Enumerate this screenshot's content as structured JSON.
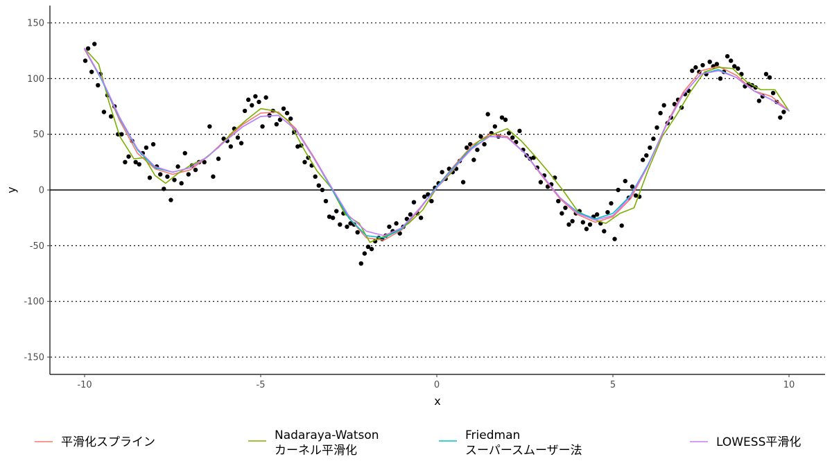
{
  "chart_data": {
    "type": "scatter",
    "title": "",
    "xlabel": "x",
    "ylabel": "y",
    "xlim": [
      -11,
      11
    ],
    "ylim": [
      -165,
      165
    ],
    "xticks": [
      -10,
      -5,
      0,
      5,
      10
    ],
    "yticks": [
      -150,
      -100,
      -50,
      0,
      50,
      100,
      150
    ],
    "tick_labels_x": [
      "-10",
      "-5",
      "0",
      "5",
      "10"
    ],
    "tick_labels_y": [
      "-150",
      "-100",
      "-50",
      "0",
      "50",
      "100",
      "150"
    ],
    "grid": "horizontal dotted at y ticks",
    "legend_position": "bottom",
    "points": [
      [
        -9.98,
        116
      ],
      [
        -9.9,
        127
      ],
      [
        -9.8,
        106
      ],
      [
        -9.72,
        131
      ],
      [
        -9.62,
        94
      ],
      [
        -9.55,
        104
      ],
      [
        -9.45,
        70
      ],
      [
        -9.35,
        85
      ],
      [
        -9.25,
        66
      ],
      [
        -9.15,
        75
      ],
      [
        -9.05,
        50
      ],
      [
        -8.95,
        50
      ],
      [
        -8.85,
        25
      ],
      [
        -8.75,
        30
      ],
      [
        -8.65,
        44
      ],
      [
        -8.55,
        25
      ],
      [
        -8.45,
        23
      ],
      [
        -8.35,
        33
      ],
      [
        -8.25,
        38
      ],
      [
        -8.15,
        11
      ],
      [
        -8.05,
        41
      ],
      [
        -7.95,
        21
      ],
      [
        -7.85,
        14
      ],
      [
        -7.75,
        1
      ],
      [
        -7.65,
        12
      ],
      [
        -7.55,
        -9
      ],
      [
        -7.45,
        9
      ],
      [
        -7.35,
        21
      ],
      [
        -7.25,
        6
      ],
      [
        -7.15,
        33
      ],
      [
        -7.05,
        14
      ],
      [
        -6.95,
        22
      ],
      [
        -6.85,
        18
      ],
      [
        -6.75,
        25
      ],
      [
        -6.6,
        25
      ],
      [
        -6.45,
        57
      ],
      [
        -6.35,
        12
      ],
      [
        -6.2,
        28
      ],
      [
        -6.05,
        46
      ],
      [
        -5.95,
        44
      ],
      [
        -5.85,
        39
      ],
      [
        -5.75,
        55
      ],
      [
        -5.65,
        47
      ],
      [
        -5.55,
        42
      ],
      [
        -5.45,
        71
      ],
      [
        -5.35,
        81
      ],
      [
        -5.25,
        76
      ],
      [
        -5.15,
        84
      ],
      [
        -5.05,
        79
      ],
      [
        -4.95,
        57
      ],
      [
        -4.85,
        83
      ],
      [
        -4.75,
        67
      ],
      [
        -4.65,
        71
      ],
      [
        -4.55,
        59
      ],
      [
        -4.45,
        63
      ],
      [
        -4.35,
        73
      ],
      [
        -4.25,
        69
      ],
      [
        -4.15,
        64
      ],
      [
        -4.05,
        52
      ],
      [
        -3.95,
        39
      ],
      [
        -3.85,
        40
      ],
      [
        -3.75,
        25
      ],
      [
        -3.65,
        29
      ],
      [
        -3.55,
        22
      ],
      [
        -3.45,
        12
      ],
      [
        -3.35,
        4
      ],
      [
        -3.25,
        0
      ],
      [
        -3.15,
        -10
      ],
      [
        -3.05,
        -24
      ],
      [
        -2.95,
        -25
      ],
      [
        -2.85,
        -19
      ],
      [
        -2.75,
        -31
      ],
      [
        -2.65,
        -21
      ],
      [
        -2.55,
        -33
      ],
      [
        -2.45,
        -30
      ],
      [
        -2.35,
        -31
      ],
      [
        -2.25,
        -38
      ],
      [
        -2.15,
        -66
      ],
      [
        -2.05,
        -57
      ],
      [
        -1.95,
        -51
      ],
      [
        -1.85,
        -53
      ],
      [
        -1.75,
        -46
      ],
      [
        -1.65,
        -43
      ],
      [
        -1.55,
        -44
      ],
      [
        -1.45,
        -41
      ],
      [
        -1.35,
        -33
      ],
      [
        -1.25,
        -37
      ],
      [
        -1.15,
        -30
      ],
      [
        -1.05,
        -39
      ],
      [
        -0.95,
        -33
      ],
      [
        -0.85,
        -26
      ],
      [
        -0.75,
        -22
      ],
      [
        -0.65,
        -11
      ],
      [
        -0.55,
        -21
      ],
      [
        -0.45,
        -25
      ],
      [
        -0.35,
        -6
      ],
      [
        -0.25,
        -4
      ],
      [
        -0.15,
        -10
      ],
      [
        -0.05,
        2
      ],
      [
        0.05,
        6
      ],
      [
        0.15,
        16
      ],
      [
        0.25,
        10
      ],
      [
        0.35,
        19
      ],
      [
        0.45,
        16
      ],
      [
        0.55,
        19
      ],
      [
        0.65,
        26
      ],
      [
        0.75,
        7
      ],
      [
        0.85,
        38
      ],
      [
        0.95,
        41
      ],
      [
        1.05,
        27
      ],
      [
        1.15,
        36
      ],
      [
        1.25,
        48
      ],
      [
        1.35,
        41
      ],
      [
        1.45,
        68
      ],
      [
        1.55,
        51
      ],
      [
        1.65,
        57
      ],
      [
        1.75,
        48
      ],
      [
        1.85,
        65
      ],
      [
        1.95,
        63
      ],
      [
        2.05,
        51
      ],
      [
        2.15,
        47
      ],
      [
        2.25,
        43
      ],
      [
        2.35,
        53
      ],
      [
        2.45,
        36
      ],
      [
        2.55,
        31
      ],
      [
        2.65,
        28
      ],
      [
        2.75,
        29
      ],
      [
        2.85,
        20
      ],
      [
        2.95,
        7
      ],
      [
        3.05,
        13
      ],
      [
        3.15,
        3
      ],
      [
        3.25,
        5
      ],
      [
        3.35,
        11
      ],
      [
        3.45,
        -10
      ],
      [
        3.55,
        -21
      ],
      [
        3.65,
        -16
      ],
      [
        3.75,
        -31
      ],
      [
        3.85,
        -28
      ],
      [
        3.95,
        -21
      ],
      [
        4.05,
        -19
      ],
      [
        4.15,
        -29
      ],
      [
        4.25,
        -35
      ],
      [
        4.35,
        -31
      ],
      [
        4.45,
        -24
      ],
      [
        4.55,
        -22
      ],
      [
        4.65,
        -30
      ],
      [
        4.75,
        -37
      ],
      [
        4.85,
        -20
      ],
      [
        4.95,
        -12
      ],
      [
        5.05,
        -44
      ],
      [
        5.15,
        0
      ],
      [
        5.25,
        -32
      ],
      [
        5.35,
        8
      ],
      [
        5.45,
        -7
      ],
      [
        5.55,
        3
      ],
      [
        5.65,
        -5
      ],
      [
        5.75,
        -6
      ],
      [
        5.85,
        27
      ],
      [
        5.95,
        31
      ],
      [
        6.05,
        38
      ],
      [
        6.15,
        46
      ],
      [
        6.25,
        56
      ],
      [
        6.35,
        69
      ],
      [
        6.45,
        76
      ],
      [
        6.55,
        60
      ],
      [
        6.65,
        65
      ],
      [
        6.75,
        77
      ],
      [
        6.85,
        81
      ],
      [
        6.95,
        74
      ],
      [
        7.05,
        86
      ],
      [
        7.15,
        89
      ],
      [
        7.25,
        107
      ],
      [
        7.35,
        110
      ],
      [
        7.45,
        106
      ],
      [
        7.55,
        112
      ],
      [
        7.65,
        104
      ],
      [
        7.75,
        115
      ],
      [
        7.85,
        111
      ],
      [
        7.95,
        113
      ],
      [
        8.05,
        100
      ],
      [
        8.15,
        106
      ],
      [
        8.25,
        120
      ],
      [
        8.35,
        116
      ],
      [
        8.45,
        111
      ],
      [
        8.55,
        109
      ],
      [
        8.65,
        104
      ],
      [
        8.75,
        93
      ],
      [
        8.85,
        95
      ],
      [
        8.95,
        94
      ],
      [
        9.05,
        92
      ],
      [
        9.15,
        80
      ],
      [
        9.25,
        84
      ],
      [
        9.35,
        104
      ],
      [
        9.45,
        101
      ],
      [
        9.55,
        87
      ],
      [
        9.65,
        79
      ],
      [
        9.75,
        65
      ],
      [
        9.85,
        70
      ]
    ],
    "series": [
      {
        "name": "平滑化スプライン",
        "color": "#F8766D",
        "x": [
          -10,
          -9.5,
          -9,
          -8.5,
          -8,
          -7.5,
          -7,
          -6.5,
          -6,
          -5.5,
          -5,
          -4.5,
          -4,
          -3.5,
          -3,
          -2.5,
          -2,
          -1.5,
          -1,
          -0.5,
          0,
          0.5,
          1,
          1.5,
          2,
          2.5,
          3,
          3.5,
          4,
          4.5,
          5,
          5.5,
          6,
          6.5,
          7,
          7.5,
          8,
          8.5,
          9,
          9.5,
          10
        ],
        "y": [
          126,
          98,
          62,
          33,
          19,
          14,
          18,
          30,
          45,
          59,
          69,
          70,
          55,
          30,
          3,
          -25,
          -43,
          -45,
          -36,
          -18,
          3,
          22,
          40,
          50,
          48,
          33,
          12,
          -8,
          -22,
          -29,
          -24,
          -8,
          22,
          58,
          88,
          107,
          111,
          103,
          89,
          84,
          71
        ]
      },
      {
        "name": "Nadaraya-Watson\nカーネル平滑化",
        "color": "#7CAE00",
        "x": [
          -10,
          -9.6,
          -9.3,
          -9,
          -8.6,
          -8.3,
          -8,
          -7.7,
          -7.3,
          -7,
          -6.6,
          -6.2,
          -5.8,
          -5.4,
          -5,
          -4.6,
          -4.2,
          -3.8,
          -3.4,
          -3,
          -2.6,
          -2.2,
          -1.9,
          -1.6,
          -1.2,
          -0.8,
          -0.4,
          0,
          0.4,
          0.8,
          1.2,
          1.6,
          2,
          2.4,
          2.8,
          3.2,
          3.6,
          4,
          4.4,
          4.8,
          5.2,
          5.6,
          6,
          6.4,
          6.8,
          7.2,
          7.6,
          8,
          8.4,
          8.8,
          9.2,
          9.6,
          10
        ],
        "y": [
          127,
          113,
          78,
          48,
          28,
          29,
          13,
          6,
          16,
          22,
          28,
          38,
          52,
          63,
          73,
          71,
          62,
          38,
          17,
          2,
          -22,
          -30,
          -47,
          -43,
          -38,
          -30,
          -18,
          2,
          15,
          32,
          44,
          50,
          55,
          44,
          30,
          15,
          -1,
          -19,
          -26,
          -30,
          -21,
          -16,
          18,
          48,
          67,
          88,
          106,
          110,
          109,
          97,
          90,
          90,
          71
        ]
      },
      {
        "name": "Friedman\nスーパースムーザー法",
        "color": "#00BFC4",
        "x": [
          -10,
          -9.5,
          -9,
          -8.5,
          -8,
          -7.5,
          -7,
          -6.5,
          -6,
          -5.5,
          -5,
          -4.5,
          -4,
          -3.5,
          -3,
          -2.5,
          -2,
          -1.5,
          -1,
          -0.5,
          0,
          0.5,
          1,
          1.5,
          2,
          2.5,
          3,
          3.5,
          4,
          4.5,
          5,
          5.5,
          6,
          6.5,
          7,
          7.5,
          8,
          8.5,
          9,
          9.5,
          10
        ],
        "y": [
          127,
          98,
          64,
          36,
          20,
          16,
          20,
          30,
          44,
          57,
          66,
          67,
          54,
          29,
          2,
          -25,
          -41,
          -43,
          -35,
          -17,
          3,
          21,
          38,
          48,
          47,
          33,
          13,
          -7,
          -20,
          -26,
          -21,
          -5,
          23,
          57,
          86,
          104,
          108,
          101,
          89,
          81,
          71
        ]
      },
      {
        "name": "LOWESS平滑化",
        "color": "#C77CFF",
        "x": [
          -10,
          -9.5,
          -9,
          -8.5,
          -8,
          -7.5,
          -7,
          -6.5,
          -6,
          -5.5,
          -5,
          -4.5,
          -4,
          -3.5,
          -3,
          -2.5,
          -2,
          -1.5,
          -1,
          -0.5,
          0,
          0.5,
          1,
          1.5,
          2,
          2.5,
          3,
          3.5,
          4,
          4.5,
          5,
          5.5,
          6,
          6.5,
          7,
          7.5,
          8,
          8.5,
          9,
          9.5,
          10
        ],
        "y": [
          127,
          99,
          65,
          37,
          21,
          16,
          20,
          30,
          44,
          57,
          66,
          67,
          54,
          29,
          3,
          -23,
          -37,
          -41,
          -34,
          -17,
          2,
          20,
          37,
          48,
          47,
          33,
          13,
          -7,
          -21,
          -27,
          -23,
          -6,
          22,
          57,
          86,
          104,
          107,
          101,
          89,
          81,
          71
        ]
      }
    ]
  }
}
